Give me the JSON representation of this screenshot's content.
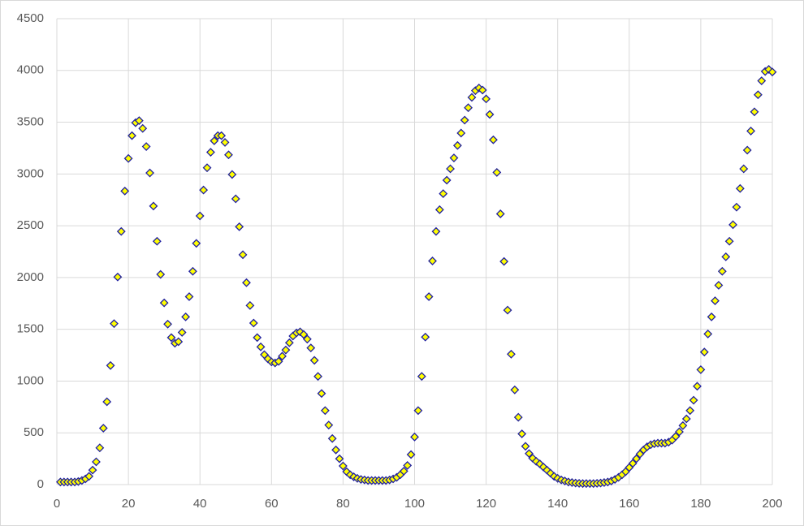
{
  "chart_data": {
    "type": "scatter",
    "x": [
      1,
      2,
      3,
      4,
      5,
      6,
      7,
      8,
      9,
      10,
      11,
      12,
      13,
      14,
      15,
      16,
      17,
      18,
      19,
      20,
      21,
      22,
      23,
      24,
      25,
      26,
      27,
      28,
      29,
      30,
      31,
      32,
      33,
      34,
      35,
      36,
      37,
      38,
      39,
      40,
      41,
      42,
      43,
      44,
      45,
      46,
      47,
      48,
      49,
      50,
      51,
      52,
      53,
      54,
      55,
      56,
      57,
      58,
      59,
      60,
      61,
      62,
      63,
      64,
      65,
      66,
      67,
      68,
      69,
      70,
      71,
      72,
      73,
      74,
      75,
      76,
      77,
      78,
      79,
      80,
      81,
      82,
      83,
      84,
      85,
      86,
      87,
      88,
      89,
      90,
      91,
      92,
      93,
      94,
      95,
      96,
      97,
      98,
      99,
      100,
      101,
      102,
      103,
      104,
      105,
      106,
      107,
      108,
      109,
      110,
      111,
      112,
      113,
      114,
      115,
      116,
      117,
      118,
      119,
      120,
      121,
      122,
      123,
      124,
      125,
      126,
      127,
      128,
      129,
      130,
      131,
      132,
      133,
      134,
      135,
      136,
      137,
      138,
      139,
      140,
      141,
      142,
      143,
      144,
      145,
      146,
      147,
      148,
      149,
      150,
      151,
      152,
      153,
      154,
      155,
      156,
      157,
      158,
      159,
      160,
      161,
      162,
      163,
      164,
      165,
      166,
      167,
      168,
      169,
      170,
      171,
      172,
      173,
      174,
      175,
      176,
      177,
      178,
      179,
      180,
      181,
      182,
      183,
      184,
      185,
      186,
      187,
      188,
      189,
      190,
      191,
      192,
      193,
      194,
      195,
      196,
      197,
      198,
      199,
      200
    ],
    "values": [
      25,
      25,
      25,
      25,
      25,
      30,
      40,
      55,
      80,
      140,
      220,
      355,
      545,
      800,
      1150,
      1555,
      2005,
      2445,
      2835,
      3150,
      3370,
      3495,
      3515,
      3440,
      3265,
      3010,
      2690,
      2350,
      2030,
      1755,
      1550,
      1420,
      1365,
      1380,
      1470,
      1620,
      1815,
      2060,
      2330,
      2595,
      2845,
      3060,
      3210,
      3320,
      3370,
      3370,
      3305,
      3185,
      2995,
      2760,
      2490,
      2220,
      1950,
      1730,
      1560,
      1420,
      1330,
      1255,
      1215,
      1185,
      1175,
      1190,
      1240,
      1300,
      1370,
      1435,
      1465,
      1475,
      1450,
      1405,
      1320,
      1200,
      1045,
      880,
      715,
      575,
      445,
      335,
      250,
      180,
      125,
      95,
      75,
      60,
      50,
      45,
      40,
      40,
      40,
      40,
      40,
      40,
      45,
      55,
      70,
      95,
      130,
      185,
      290,
      460,
      715,
      1045,
      1425,
      1815,
      2160,
      2445,
      2655,
      2810,
      2940,
      3050,
      3155,
      3275,
      3395,
      3520,
      3640,
      3740,
      3805,
      3830,
      3810,
      3725,
      3575,
      3330,
      3015,
      2615,
      2155,
      1685,
      1260,
      915,
      650,
      490,
      370,
      300,
      255,
      225,
      200,
      170,
      140,
      110,
      80,
      60,
      45,
      35,
      25,
      20,
      15,
      12,
      10,
      10,
      10,
      10,
      12,
      15,
      20,
      25,
      35,
      50,
      70,
      95,
      125,
      165,
      205,
      250,
      295,
      335,
      365,
      385,
      395,
      400,
      400,
      400,
      410,
      430,
      465,
      510,
      570,
      635,
      715,
      815,
      950,
      1110,
      1280,
      1455,
      1620,
      1775,
      1925,
      2060,
      2200,
      2350,
      2510,
      2680,
      2860,
      3050,
      3230,
      3415,
      3600,
      3765,
      3900,
      3990,
      4010,
      3985
    ],
    "color": "#ffff00",
    "edge_color": "#2020a0",
    "xlim": [
      0,
      200
    ],
    "xticks": [
      0,
      20,
      40,
      60,
      80,
      100,
      120,
      140,
      160,
      180,
      200
    ],
    "ylim": [
      0,
      4500
    ],
    "yticks": [
      0,
      500,
      1000,
      1500,
      2000,
      2500,
      3000,
      3500,
      4000,
      4500
    ],
    "grid": true
  }
}
